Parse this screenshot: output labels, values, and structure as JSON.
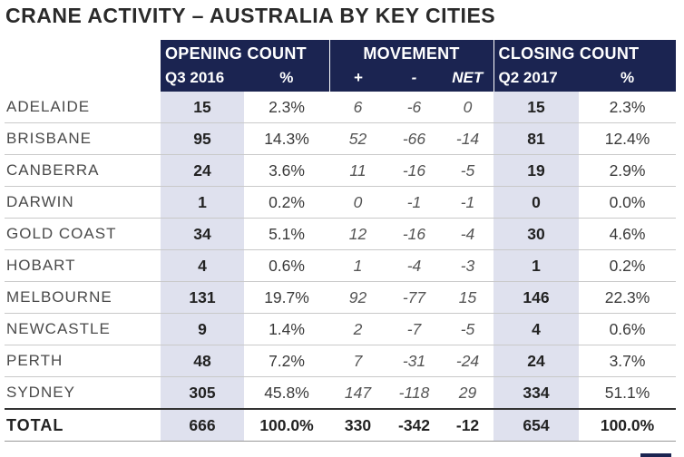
{
  "title": "CRANE ACTIVITY – AUSTRALIA BY KEY CITIES",
  "header": {
    "opening_group": "OPENING COUNT",
    "movement_group": "MOVEMENT",
    "closing_group": "CLOSING COUNT",
    "opening_period": "Q3 2016",
    "opening_pct": "%",
    "plus": "+",
    "minus": "-",
    "net": "NET",
    "closing_period": "Q2 2017",
    "closing_pct": "%"
  },
  "rows": [
    {
      "city": "ADELAIDE",
      "open": "15",
      "open_pct": "2.3%",
      "plus": "6",
      "minus": "-6",
      "net": "0",
      "close": "15",
      "close_pct": "2.3%"
    },
    {
      "city": "BRISBANE",
      "open": "95",
      "open_pct": "14.3%",
      "plus": "52",
      "minus": "-66",
      "net": "-14",
      "close": "81",
      "close_pct": "12.4%"
    },
    {
      "city": "CANBERRA",
      "open": "24",
      "open_pct": "3.6%",
      "plus": "11",
      "minus": "-16",
      "net": "-5",
      "close": "19",
      "close_pct": "2.9%"
    },
    {
      "city": "DARWIN",
      "open": "1",
      "open_pct": "0.2%",
      "plus": "0",
      "minus": "-1",
      "net": "-1",
      "close": "0",
      "close_pct": "0.0%"
    },
    {
      "city": "GOLD COAST",
      "open": "34",
      "open_pct": "5.1%",
      "plus": "12",
      "minus": "-16",
      "net": "-4",
      "close": "30",
      "close_pct": "4.6%"
    },
    {
      "city": "HOBART",
      "open": "4",
      "open_pct": "0.6%",
      "plus": "1",
      "minus": "-4",
      "net": "-3",
      "close": "1",
      "close_pct": "0.2%"
    },
    {
      "city": "MELBOURNE",
      "open": "131",
      "open_pct": "19.7%",
      "plus": "92",
      "minus": "-77",
      "net": "15",
      "close": "146",
      "close_pct": "22.3%"
    },
    {
      "city": "NEWCASTLE",
      "open": "9",
      "open_pct": "1.4%",
      "plus": "2",
      "minus": "-7",
      "net": "-5",
      "close": "4",
      "close_pct": "0.6%"
    },
    {
      "city": "PERTH",
      "open": "48",
      "open_pct": "7.2%",
      "plus": "7",
      "minus": "-31",
      "net": "-24",
      "close": "24",
      "close_pct": "3.7%"
    },
    {
      "city": "SYDNEY",
      "open": "305",
      "open_pct": "45.8%",
      "plus": "147",
      "minus": "-118",
      "net": "29",
      "close": "334",
      "close_pct": "51.1%"
    }
  ],
  "total": {
    "city": "TOTAL",
    "open": "666",
    "open_pct": "100.0%",
    "plus": "330",
    "minus": "-342",
    "net": "-12",
    "close": "654",
    "close_pct": "100.0%"
  },
  "colors": {
    "header_bg": "#1b2451",
    "highlight_bg": "#dfe1ee"
  }
}
